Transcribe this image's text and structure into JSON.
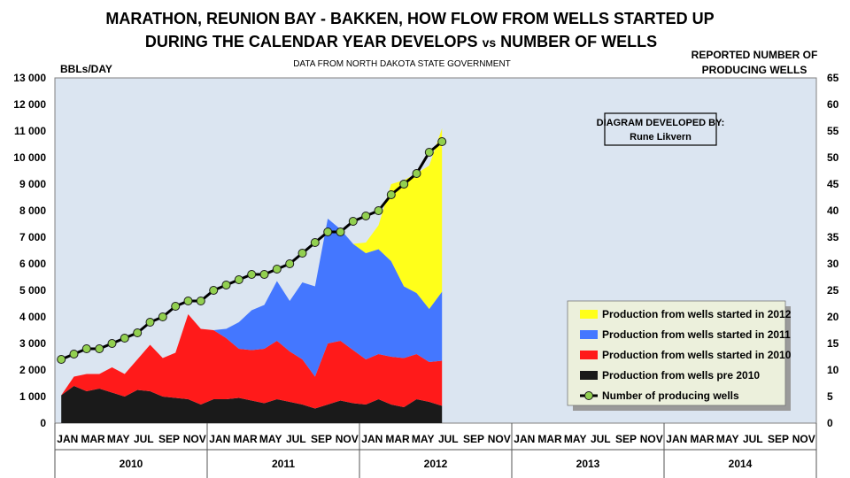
{
  "chart_data": {
    "type": "area",
    "title_line1": "MARATHON, REUNION BAY - BAKKEN, HOW FLOW  FROM WELLS STARTED UP",
    "title_line2_a": "DURING THE CALENDAR YEAR DEVELOPS ",
    "title_line2_vs": "vs",
    "title_line2_b": " NUMBER OF WELLS",
    "subtitle": "DATA FROM NORTH DAKOTA STATE GOVERNMENT",
    "ylabel_left": "BBLs/DAY",
    "ylabel_right_line1": "REPORTED NUMBER OF",
    "ylabel_right_line2": "PRODUCING WELLS",
    "annotation_line1": "DIAGRAM DEVELOPED BY:",
    "annotation_line2": "Rune Likvern",
    "ylim_left": [
      0,
      13000
    ],
    "ylim_right": [
      0,
      65
    ],
    "y_ticks_left": [
      "0",
      "1 000",
      "2 000",
      "3 000",
      "4 000",
      "5 000",
      "6 000",
      "7 000",
      "8 000",
      "9 000",
      "10 000",
      "11 000",
      "12 000",
      "13 000"
    ],
    "y_ticks_right": [
      "0",
      "5",
      "10",
      "15",
      "20",
      "25",
      "30",
      "35",
      "40",
      "45",
      "50",
      "55",
      "60",
      "65"
    ],
    "x_month_labels": [
      "JAN",
      "MAR",
      "MAY",
      "JUL",
      "SEP",
      "NOV",
      "JAN",
      "MAR",
      "MAY",
      "JUL",
      "SEP",
      "NOV",
      "JAN",
      "MAR",
      "MAY",
      "JUL",
      "SEP",
      "NOV",
      "JAN",
      "MAR",
      "MAY",
      "JUL",
      "SEP",
      "NOV",
      "JAN",
      "MAR",
      "MAY",
      "JUL",
      "SEP",
      "NOV"
    ],
    "x_year_labels": [
      "2010",
      "2011",
      "2012",
      "2013",
      "2014"
    ],
    "grid": false,
    "legend_position": "bottom-right",
    "series": [
      {
        "name": "Production from wells pre 2010",
        "color": "#1a1a1a",
        "values": [
          1050,
          1400,
          1200,
          1300,
          1150,
          1000,
          1250,
          1200,
          1000,
          950,
          900,
          700,
          900,
          900,
          950,
          850,
          750,
          900,
          800,
          700,
          550,
          700,
          850,
          750,
          700,
          900,
          700,
          600,
          900,
          800,
          650
        ]
      },
      {
        "name": "Production from wells started in 2010",
        "color": "#ff1a1a",
        "values": [
          0,
          350,
          650,
          550,
          950,
          850,
          1150,
          1750,
          1450,
          1700,
          3200,
          2850,
          2600,
          2300,
          1850,
          1900,
          2050,
          2200,
          1900,
          1700,
          1200,
          2300,
          2250,
          2000,
          1700,
          1700,
          1800,
          1850,
          1700,
          1500,
          1700
        ]
      },
      {
        "name": "Production from wells started in 2011",
        "color": "#4477ff",
        "values": [
          0,
          0,
          0,
          0,
          0,
          0,
          0,
          0,
          0,
          0,
          0,
          0,
          0,
          350,
          1000,
          1500,
          1650,
          2250,
          1900,
          2900,
          3400,
          4700,
          4200,
          4000,
          4000,
          3950,
          3600,
          2700,
          2300,
          2000,
          2600
        ]
      },
      {
        "name": "Production from wells started in 2012",
        "color": "#ffff1a",
        "values": [
          0,
          0,
          0,
          0,
          0,
          0,
          0,
          0,
          0,
          0,
          0,
          0,
          0,
          0,
          0,
          0,
          0,
          0,
          0,
          0,
          0,
          0,
          0,
          0,
          400,
          900,
          2900,
          4000,
          4500,
          5400,
          6150
        ]
      },
      {
        "name": "Number of producing wells",
        "color": "#000000",
        "axis": "right",
        "values": [
          12,
          13,
          14,
          14,
          15,
          16,
          17,
          19,
          20,
          22,
          23,
          23,
          25,
          26,
          27,
          28,
          28,
          29,
          30,
          32,
          34,
          36,
          36,
          38,
          39,
          40,
          43,
          45,
          47,
          51,
          53
        ]
      }
    ],
    "legend_labels": [
      "Production from wells started in 2012",
      "Production from wells started in 2011",
      "Production from wells started in 2010",
      "Production from wells pre 2010",
      "Number of producing wells"
    ]
  }
}
